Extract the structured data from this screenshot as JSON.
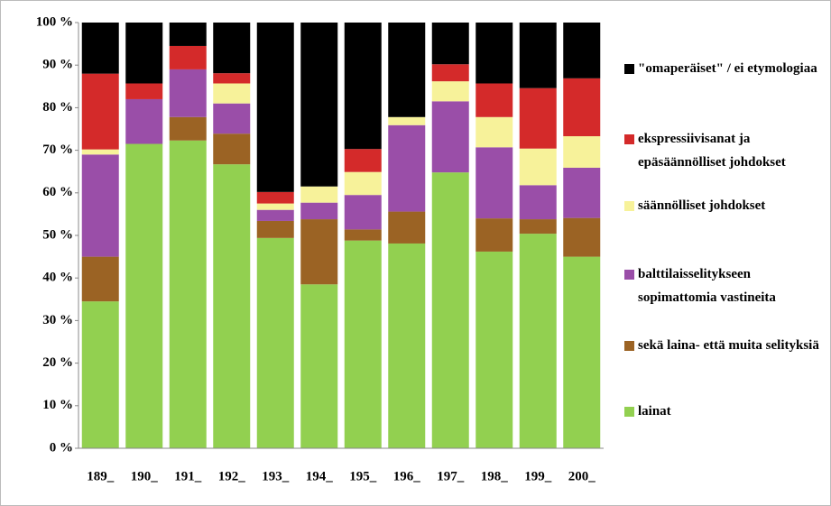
{
  "chart_data": {
    "type": "stacked_bar",
    "categories": [
      "189_",
      "190_",
      "191_",
      "192_",
      "193_",
      "194_",
      "195_",
      "196_",
      "197_",
      "198_",
      "199_",
      "200_"
    ],
    "series": [
      {
        "name": "lainat",
        "color": "#92d050",
        "values": [
          34.5,
          71.5,
          72.3,
          66.7,
          49.4,
          38.5,
          48.8,
          48.1,
          64.8,
          46.2,
          50.4,
          45.0
        ]
      },
      {
        "name": "sekä laina- että muita selityksiä",
        "color": "#9b6324",
        "values": [
          10.5,
          0,
          5.5,
          7.2,
          4.0,
          15.3,
          2.6,
          7.5,
          0,
          7.8,
          3.4,
          9.1
        ]
      },
      {
        "name": "balttilaisselitykseen sopimattomia vastineita",
        "color": "#9a4ea8",
        "values": [
          24.0,
          10.5,
          11.2,
          7.1,
          2.6,
          3.9,
          8.1,
          20.3,
          16.7,
          16.7,
          8.0,
          11.8
        ]
      },
      {
        "name": "säännölliset johdokset",
        "color": "#f7f29a",
        "values": [
          1.2,
          0,
          0,
          4.7,
          1.5,
          3.8,
          5.4,
          1.9,
          4.7,
          7.1,
          8.6,
          7.4
        ]
      },
      {
        "name": "ekspressiivisanat ja epäsäännölliset johdokset",
        "color": "#d42a2a",
        "values": [
          17.8,
          3.7,
          5.5,
          2.4,
          2.7,
          0,
          5.4,
          0,
          4.0,
          7.9,
          14.2,
          13.6
        ]
      },
      {
        "name": "\"omaperäiset\" / ei etymologiaa",
        "color": "#000000",
        "values": [
          12.0,
          14.3,
          5.5,
          11.9,
          39.8,
          38.5,
          29.7,
          22.2,
          9.8,
          14.3,
          15.4,
          13.1
        ]
      }
    ],
    "ylim": [
      0,
      100
    ],
    "yticks": [
      {
        "value": 0,
        "label": "0 %"
      },
      {
        "value": 10,
        "label": "10 %"
      },
      {
        "value": 20,
        "label": "20 %"
      },
      {
        "value": 30,
        "label": "30 %"
      },
      {
        "value": 40,
        "label": "40 %"
      },
      {
        "value": 50,
        "label": "50 %"
      },
      {
        "value": 60,
        "label": "60 %"
      },
      {
        "value": 70,
        "label": "70 %"
      },
      {
        "value": 80,
        "label": "80 %"
      },
      {
        "value": 90,
        "label": "90 %"
      },
      {
        "value": 100,
        "label": "100 %"
      }
    ],
    "legend": "right"
  }
}
